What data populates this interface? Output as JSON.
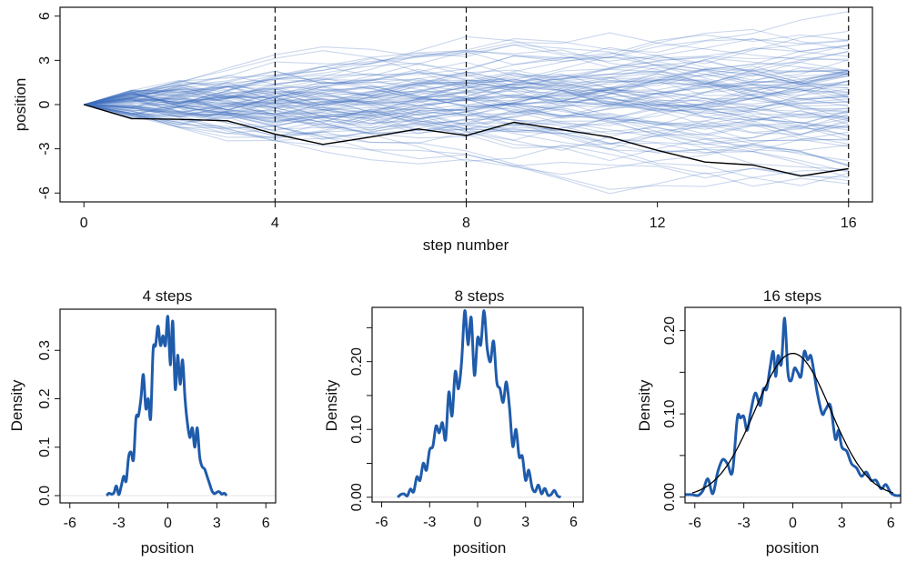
{
  "chart_data": [
    {
      "id": "walks",
      "type": "line",
      "title": "",
      "xlabel": "step number",
      "ylabel": "position",
      "xlim": [
        -0.5,
        16.5
      ],
      "ylim": [
        -6.6,
        6.6
      ],
      "xticks": [
        0,
        4,
        8,
        12,
        16
      ],
      "yticks": [
        -6,
        -3,
        0,
        3,
        6
      ],
      "vlines": [
        4,
        8,
        16
      ],
      "vline_style": "dashed",
      "n_walks": 100,
      "walk_step_distribution": "uniform(-1, 1)",
      "walk_color": "#3f6fc0",
      "walk_opacity": 0.28,
      "highlight_color": "#000000",
      "highlight_path": {
        "x": [
          0,
          1,
          2,
          3,
          4,
          5,
          6,
          7,
          8,
          9,
          10,
          11,
          12,
          13,
          14,
          15,
          16
        ],
        "y": [
          0,
          -0.95,
          -1.0,
          -1.1,
          -2.0,
          -2.7,
          -2.2,
          -1.65,
          -2.1,
          -1.2,
          -1.7,
          -2.2,
          -3.1,
          -3.9,
          -4.1,
          -4.85,
          -4.35
        ]
      },
      "seed": 7
    },
    {
      "id": "density-4",
      "type": "line",
      "title": "4 steps",
      "xlabel": "position",
      "ylabel": "Density",
      "xlim": [
        -6.6,
        6.6
      ],
      "ylim": [
        -0.015,
        0.385
      ],
      "xticks": [
        -6,
        -3,
        0,
        3,
        6
      ],
      "yticks": [
        0.0,
        0.1,
        0.2,
        0.3
      ],
      "ytick_labels": [
        "0.0",
        "0.1",
        "0.2",
        "0.3"
      ],
      "line_color": "#1f5bab",
      "x": [
        -3.75,
        -3.6,
        -3.45,
        -3.3,
        -3.15,
        -3.0,
        -2.85,
        -2.7,
        -2.55,
        -2.4,
        -2.25,
        -2.1,
        -1.95,
        -1.8,
        -1.65,
        -1.5,
        -1.35,
        -1.2,
        -1.05,
        -0.9,
        -0.75,
        -0.6,
        -0.45,
        -0.3,
        -0.15,
        0.0,
        0.15,
        0.3,
        0.45,
        0.6,
        0.75,
        0.9,
        1.05,
        1.2,
        1.35,
        1.5,
        1.65,
        1.8,
        1.95,
        2.1,
        2.25,
        2.4,
        2.55,
        2.7,
        2.85,
        3.0,
        3.15,
        3.3,
        3.45,
        3.6
      ],
      "y": [
        0.0,
        0.005,
        0.003,
        0.006,
        0.02,
        0.002,
        0.02,
        0.04,
        0.03,
        0.08,
        0.09,
        0.075,
        0.16,
        0.165,
        0.2,
        0.25,
        0.18,
        0.2,
        0.16,
        0.3,
        0.31,
        0.35,
        0.31,
        0.33,
        0.31,
        0.37,
        0.27,
        0.36,
        0.22,
        0.29,
        0.23,
        0.28,
        0.2,
        0.15,
        0.12,
        0.14,
        0.1,
        0.14,
        0.08,
        0.06,
        0.055,
        0.04,
        0.025,
        0.01,
        0.004,
        0.007,
        0.008,
        0.003,
        0.005,
        0.0
      ]
    },
    {
      "id": "density-8",
      "type": "line",
      "title": "8 steps",
      "xlabel": "position",
      "ylabel": "Density",
      "xlim": [
        -6.6,
        6.6
      ],
      "ylim": [
        -0.007,
        0.28
      ],
      "xticks": [
        -6,
        -3,
        0,
        3,
        6
      ],
      "yticks": [
        0.0,
        0.05,
        0.1,
        0.15,
        0.2,
        0.25
      ],
      "ytick_labels": [
        "0.00",
        "",
        "0.10",
        "",
        "0.20",
        ""
      ],
      "line_color": "#1f5bab",
      "x": [
        -5.0,
        -4.8,
        -4.6,
        -4.4,
        -4.2,
        -4.0,
        -3.8,
        -3.6,
        -3.4,
        -3.2,
        -3.0,
        -2.8,
        -2.6,
        -2.4,
        -2.2,
        -2.0,
        -1.8,
        -1.6,
        -1.4,
        -1.2,
        -1.0,
        -0.8,
        -0.6,
        -0.4,
        -0.2,
        0.0,
        0.2,
        0.4,
        0.6,
        0.8,
        1.0,
        1.2,
        1.4,
        1.6,
        1.8,
        2.0,
        2.2,
        2.4,
        2.6,
        2.8,
        3.0,
        3.2,
        3.4,
        3.6,
        3.8,
        4.0,
        4.2,
        4.4,
        4.6,
        4.8,
        5.0,
        5.2
      ],
      "y": [
        0.0,
        0.004,
        0.005,
        0.002,
        0.012,
        0.008,
        0.03,
        0.025,
        0.05,
        0.04,
        0.07,
        0.075,
        0.105,
        0.095,
        0.11,
        0.085,
        0.155,
        0.12,
        0.185,
        0.16,
        0.2,
        0.275,
        0.225,
        0.265,
        0.18,
        0.235,
        0.225,
        0.275,
        0.22,
        0.2,
        0.23,
        0.17,
        0.16,
        0.14,
        0.17,
        0.13,
        0.075,
        0.1,
        0.06,
        0.06,
        0.025,
        0.04,
        0.015,
        0.008,
        0.018,
        0.005,
        0.013,
        0.003,
        0.004,
        0.01,
        0.002,
        0.0
      ]
    },
    {
      "id": "density-16",
      "type": "line",
      "title": "16 steps",
      "xlabel": "position",
      "ylabel": "Density",
      "xlim": [
        -6.6,
        6.6
      ],
      "ylim": [
        -0.007,
        0.228
      ],
      "xticks": [
        -6,
        -3,
        0,
        3,
        6
      ],
      "yticks": [
        0.0,
        0.05,
        0.1,
        0.15,
        0.2
      ],
      "ytick_labels": [
        "0.00",
        "",
        "0.10",
        "",
        "0.20"
      ],
      "line_color": "#1f5bab",
      "x": [
        -6.6,
        -6.2,
        -5.8,
        -5.5,
        -5.2,
        -4.9,
        -4.6,
        -4.3,
        -4.0,
        -3.7,
        -3.4,
        -3.2,
        -3.0,
        -2.8,
        -2.6,
        -2.3,
        -2.0,
        -1.8,
        -1.6,
        -1.4,
        -1.2,
        -1.05,
        -0.9,
        -0.7,
        -0.5,
        -0.3,
        -0.1,
        0.1,
        0.3,
        0.5,
        0.7,
        0.9,
        1.1,
        1.3,
        1.5,
        1.8,
        2.0,
        2.3,
        2.6,
        2.8,
        3.0,
        3.3,
        3.6,
        3.9,
        4.2,
        4.5,
        4.8,
        5.1,
        5.4,
        5.7,
        6.0,
        6.3,
        6.6
      ],
      "y": [
        0.003,
        0.003,
        0.002,
        0.008,
        0.022,
        0.004,
        0.03,
        0.045,
        0.04,
        0.03,
        0.095,
        0.095,
        0.097,
        0.08,
        0.1,
        0.125,
        0.11,
        0.13,
        0.13,
        0.155,
        0.175,
        0.145,
        0.17,
        0.16,
        0.215,
        0.15,
        0.14,
        0.155,
        0.15,
        0.145,
        0.175,
        0.165,
        0.17,
        0.15,
        0.125,
        0.1,
        0.105,
        0.11,
        0.07,
        0.08,
        0.06,
        0.055,
        0.04,
        0.035,
        0.025,
        0.03,
        0.02,
        0.02,
        0.01,
        0.015,
        0.005,
        0.002,
        0.002
      ],
      "normal_overlay": {
        "mean": 0,
        "sd": 2.31,
        "color": "#000000"
      }
    }
  ]
}
